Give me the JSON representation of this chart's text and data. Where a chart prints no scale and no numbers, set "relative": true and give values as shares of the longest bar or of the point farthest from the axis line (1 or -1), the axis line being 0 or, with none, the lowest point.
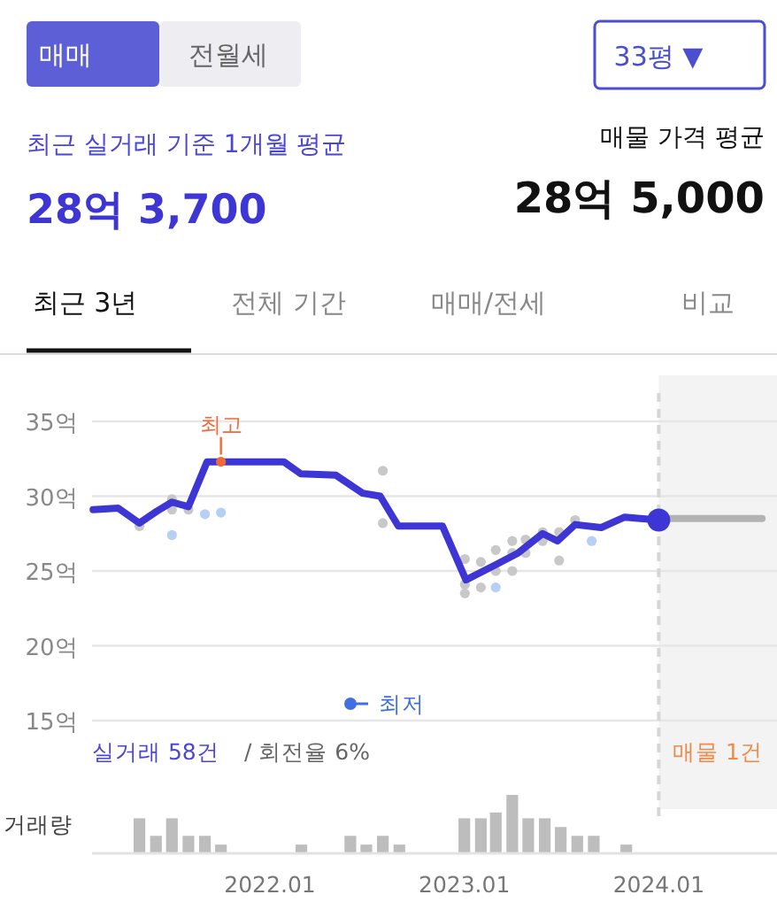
{
  "chart_data": [
    {
      "type": "line",
      "annotations": [
        "매매",
        "전월세",
        "33평 ▼",
        "최근 실거래 기준 1개월 평균",
        "28억 3,700",
        "매물 가격 평균",
        "28억 5,000",
        "최근 3년",
        "전체 기간",
        "매매/전세",
        "비교",
        "실거래 58건",
        "/ 회전율 6%",
        "매물 1건",
        "최저",
        {
          "text": "최고",
          "x": "2021-10-01",
          "y": 32.3
        }
      ],
      "xlim": [
        "2021-02-01",
        "2024-08-10"
      ],
      "ylim": [
        15,
        35
      ],
      "yticks": [
        {
          "value": 15,
          "label": "15억"
        },
        {
          "value": 20,
          "label": "20억"
        },
        {
          "value": 25,
          "label": "25억"
        },
        {
          "value": 30,
          "label": "30억"
        },
        {
          "value": 35,
          "label": "35억"
        }
      ],
      "grid": "y",
      "tick_labels": "y",
      "bands": [
        {
          "axis": "x",
          "from": "2024-01-01",
          "to": "2024-08-10",
          "color": "#f3f3f3"
        }
      ],
      "ref_lines": [
        {
          "axis": "x",
          "value": "2024-01-01",
          "color": "#d6d6d6",
          "line_style": "dashed"
        }
      ],
      "series": [
        {
          "type": "scatter",
          "color": "#c8c8c8",
          "x": [
            "2021-05-01",
            "2021-07-01",
            "2021-07-01",
            "2021-08-01",
            "2022-08-01",
            "2022-08-01",
            "2023-01-02",
            "2023-01-02",
            "2023-01-02",
            "2023-02-01",
            "2023-02-01",
            "2023-03-01",
            "2023-03-01",
            "2023-04-01",
            "2023-04-01",
            "2023-04-01",
            "2023-04-26",
            "2023-04-26",
            "2023-05-28",
            "2023-05-28",
            "2023-06-28",
            "2023-06-28",
            "2023-07-28"
          ],
          "values": [
            28.0,
            29.8,
            29.1,
            29.1,
            31.7,
            28.2,
            25.8,
            24.1,
            23.5,
            25.6,
            23.9,
            26.4,
            25.0,
            27.0,
            26.2,
            25.0,
            27.1,
            26.2,
            27.6,
            27.0,
            27.6,
            25.7,
            28.4
          ]
        },
        {
          "type": "scatter",
          "color": "#b5cff5",
          "x": [
            "2021-07-01",
            "2021-09-01",
            "2021-10-01",
            "2023-03-01",
            "2023-08-28"
          ],
          "values": [
            27.4,
            28.8,
            28.9,
            23.9,
            27.0
          ]
        },
        {
          "type": "line",
          "color": "#b3b3b3",
          "x": [
            "2024-01-01",
            "2024-07-13"
          ],
          "values": [
            28.5,
            28.5
          ]
        },
        {
          "color": "#3d36d4",
          "x": [
            "2021-02-03",
            "2021-03-22",
            "2021-05-01",
            "2021-06-03",
            "2021-07-01",
            "2021-08-01",
            "2021-09-05",
            "2022-01-27",
            "2022-02-28",
            "2022-05-05",
            "2022-06-24",
            "2022-07-27",
            "2022-08-30",
            "2022-11-21",
            "2023-01-04",
            "2023-02-28",
            "2023-04-12",
            "2023-05-28",
            "2023-06-25",
            "2023-07-28",
            "2023-09-15",
            "2023-10-29",
            "2024-01-01"
          ],
          "values": [
            29.1,
            29.2,
            28.2,
            29.0,
            29.6,
            29.3,
            32.3,
            32.3,
            31.5,
            31.4,
            30.2,
            30.0,
            28.0,
            28.0,
            24.4,
            25.4,
            26.2,
            27.5,
            27.0,
            28.1,
            27.9,
            28.6,
            28.4
          ]
        },
        {
          "type": "scatter",
          "color": "#f06a38",
          "x": [
            "2021-10-01"
          ],
          "values": [
            32.3
          ]
        }
      ]
    },
    {
      "type": "bar",
      "ylabel": "거래량",
      "relative": true,
      "tick_labels": "x",
      "color": "#bdbdbd",
      "xlim": [
        "2021-02-01",
        "2024-08-10"
      ],
      "xticks": [
        {
          "value": "2022-01-01",
          "label": "2022.01"
        },
        {
          "value": "2023-01-01",
          "label": "2023.01"
        },
        {
          "value": "2024-01-01",
          "label": "2024.01"
        }
      ],
      "x": [
        "2021-05-01",
        "2021-06-01",
        "2021-07-01",
        "2021-08-01",
        "2021-09-01",
        "2021-10-01",
        "2022-03-01",
        "2022-06-01",
        "2022-07-01",
        "2022-08-01",
        "2022-09-01",
        "2023-01-01",
        "2023-02-01",
        "2023-03-01",
        "2023-04-01",
        "2023-05-01",
        "2023-06-01",
        "2023-07-01",
        "2023-08-01",
        "2023-09-01",
        "2023-11-01"
      ],
      "values": [
        0.6,
        0.3,
        0.6,
        0.3,
        0.3,
        0.15,
        0.15,
        0.3,
        0.15,
        0.3,
        0.15,
        0.6,
        0.6,
        0.7,
        1,
        0.6,
        0.6,
        0.45,
        0.3,
        0.3,
        0.15
      ]
    }
  ]
}
